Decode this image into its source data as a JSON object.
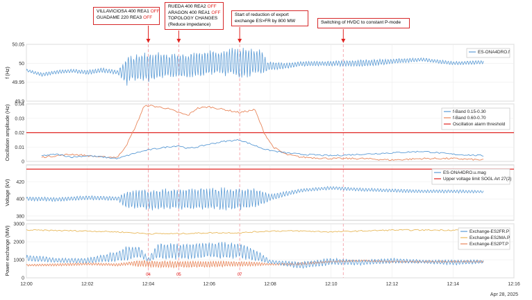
{
  "annotations": [
    {
      "lines": [
        [
          "VILLAVICIOSA  400  REA1 ",
          "OFF"
        ],
        [
          "GUADAME  220  REA3  ",
          "OFF"
        ]
      ]
    },
    {
      "lines": [
        [
          "RUEDA  400  REA2  ",
          "OFF"
        ],
        [
          "ARAGON  400  REA1  ",
          "OFF"
        ],
        [
          "TOPOLOGY  CHANGES",
          ""
        ],
        [
          "(Reduce impedance)",
          ""
        ]
      ]
    },
    {
      "lines": [
        [
          "Start  of  reduction  of  export",
          ""
        ],
        [
          "exchange ES>FR  by  800  MW",
          ""
        ]
      ]
    },
    {
      "lines": [
        [
          "Switching  of  HVDC  to  constant  P-mode",
          ""
        ]
      ]
    }
  ],
  "event_labels": [
    "04",
    "05",
    "07"
  ],
  "date_label": "Apr 28, 2025",
  "colors": {
    "blue": "#5b9bd5",
    "orange": "#e8865a",
    "yellow": "#e8b85a",
    "red": "#e0221f",
    "marker": "#f4a0a8"
  },
  "chart_data": [
    {
      "type": "line",
      "ylabel": "f (Hz)",
      "ylim": [
        49.9,
        50.05
      ],
      "yticks": [
        "49.9",
        "49.95",
        "50",
        "50.05"
      ],
      "series": [
        {
          "name": "ES-ONA4DRO.f"
        }
      ],
      "envelope": [
        [
          0,
          49.978,
          49.985
        ],
        [
          0.5,
          49.965,
          49.975
        ],
        [
          1,
          49.972,
          49.982
        ],
        [
          1.5,
          49.975,
          49.985
        ],
        [
          2,
          49.97,
          49.982
        ],
        [
          2.5,
          49.975,
          49.988
        ],
        [
          3,
          49.97,
          49.982
        ],
        [
          3.3,
          49.94,
          50.02
        ],
        [
          3.6,
          49.955,
          50.025
        ],
        [
          4,
          49.95,
          50.03
        ],
        [
          4.5,
          49.955,
          50.03
        ],
        [
          5,
          49.958,
          50.025
        ],
        [
          5.5,
          49.962,
          50.03
        ],
        [
          6,
          49.965,
          50.035
        ],
        [
          6.5,
          49.965,
          50.04
        ],
        [
          7,
          49.96,
          50.045
        ],
        [
          7.5,
          49.965,
          50.04
        ],
        [
          7.75,
          49.965,
          50.035
        ],
        [
          7.9,
          49.98,
          50.005
        ],
        [
          8.5,
          49.985,
          50.002
        ],
        [
          9,
          49.992,
          50.005
        ],
        [
          10,
          49.993,
          50.006
        ],
        [
          11,
          49.99,
          50.01
        ],
        [
          12,
          49.998,
          50.012
        ],
        [
          13,
          50.005,
          50.015
        ],
        [
          14,
          49.995,
          50.005
        ],
        [
          15,
          49.998,
          50.008
        ]
      ],
      "event_times": [
        4,
        5,
        7,
        10.4
      ],
      "xlim": [
        0,
        16
      ]
    },
    {
      "type": "line",
      "ylabel": "Oscillation amplitude (Hz)",
      "ylim": [
        0,
        0.04
      ],
      "yticks": [
        "0",
        "0.01",
        "0.02",
        "0.03",
        "0.04"
      ],
      "threshold": 0.02,
      "series": [
        {
          "name": "f-Band 0.15-0.30",
          "points": [
            [
              0.5,
              0.004
            ],
            [
              1,
              0.005
            ],
            [
              1.5,
              0.003
            ],
            [
              2,
              0.004
            ],
            [
              2.5,
              0.003
            ],
            [
              3,
              0.002
            ],
            [
              3.3,
              0.004
            ],
            [
              3.6,
              0.006
            ],
            [
              4,
              0.008
            ],
            [
              4.3,
              0.009
            ],
            [
              4.6,
              0.01
            ],
            [
              5,
              0.011
            ],
            [
              5.3,
              0.009
            ],
            [
              5.6,
              0.01
            ],
            [
              6,
              0.012
            ],
            [
              6.5,
              0.014
            ],
            [
              7,
              0.015
            ],
            [
              7.5,
              0.011
            ],
            [
              7.9,
              0.008
            ],
            [
              8.5,
              0.006
            ],
            [
              9,
              0.005
            ],
            [
              10,
              0.004
            ],
            [
              11,
              0.005
            ],
            [
              12,
              0.006
            ],
            [
              13,
              0.007
            ],
            [
              14,
              0.005
            ],
            [
              15,
              0.004
            ]
          ]
        },
        {
          "name": "f-Band 0.60-0.70",
          "points": [
            [
              0.5,
              0.003
            ],
            [
              1,
              0.004
            ],
            [
              1.5,
              0.005
            ],
            [
              2,
              0.004
            ],
            [
              2.5,
              0.003
            ],
            [
              3,
              0.003
            ],
            [
              3.3,
              0.012
            ],
            [
              3.6,
              0.025
            ],
            [
              3.85,
              0.038
            ],
            [
              4,
              0.039
            ],
            [
              4.3,
              0.038
            ],
            [
              4.6,
              0.037
            ],
            [
              5,
              0.034
            ],
            [
              5.3,
              0.032
            ],
            [
              5.6,
              0.037
            ],
            [
              6,
              0.038
            ],
            [
              6.5,
              0.036
            ],
            [
              7,
              0.034
            ],
            [
              7.5,
              0.036
            ],
            [
              7.8,
              0.02
            ],
            [
              8.1,
              0.01
            ],
            [
              8.5,
              0.005
            ],
            [
              9,
              0.003
            ],
            [
              10,
              0.002
            ],
            [
              11,
              0.002
            ],
            [
              12,
              0.001
            ],
            [
              13,
              0.002
            ],
            [
              14,
              0.002
            ],
            [
              15,
              0.001
            ]
          ]
        },
        {
          "name": "Oscillation alarm threshold"
        }
      ],
      "xlim": [
        0,
        16
      ]
    },
    {
      "type": "line",
      "ylabel": "Voltage (kV)",
      "ylim": [
        375,
        440
      ],
      "yticks": [
        "380",
        "400",
        "420"
      ],
      "limit": 435,
      "series": [
        {
          "name": "ES-ONA4DRO.u.mag"
        },
        {
          "name": "Upper voltage limit SOGL Art 27(2)"
        }
      ],
      "envelope": [
        [
          0,
          398,
          403
        ],
        [
          1,
          397,
          402
        ],
        [
          2,
          399,
          404
        ],
        [
          3,
          398,
          403
        ],
        [
          3.3,
          388,
          410
        ],
        [
          4,
          386,
          412
        ],
        [
          5,
          387,
          413
        ],
        [
          6,
          386,
          414
        ],
        [
          7,
          386,
          415
        ],
        [
          7.6,
          390,
          412
        ],
        [
          8,
          398,
          406
        ],
        [
          9,
          408,
          412
        ],
        [
          10,
          411,
          415
        ],
        [
          11,
          409,
          413
        ],
        [
          12,
          408,
          412
        ],
        [
          13,
          407,
          411
        ],
        [
          14,
          407,
          411
        ],
        [
          15,
          407,
          410
        ]
      ],
      "xlim": [
        0,
        16
      ]
    },
    {
      "type": "line",
      "ylabel": "Power exchange (MW)",
      "ylim": [
        0,
        3000
      ],
      "yticks": [
        "0",
        "1000",
        "2000",
        "3000"
      ],
      "xticks": [
        "12:00",
        "12:02",
        "12:04",
        "12:06",
        "12:08",
        "12:10",
        "12:12",
        "12:14",
        "12:16"
      ],
      "series": [
        {
          "name": "Exchange-ES2FR.P"
        },
        {
          "name": "Exchange-ES2MA.P"
        },
        {
          "name": "Exchange-ES2PT.P"
        }
      ],
      "fr_envelope": [
        [
          0,
          900,
          1300
        ],
        [
          1,
          850,
          1100
        ],
        [
          2,
          800,
          1100
        ],
        [
          3,
          900,
          1500
        ],
        [
          3.3,
          900,
          1800
        ],
        [
          3.7,
          1100,
          1800
        ],
        [
          4,
          900,
          1100
        ],
        [
          4.3,
          1000,
          2000
        ],
        [
          5,
          1000,
          1900
        ],
        [
          6,
          1050,
          2000
        ],
        [
          7,
          1050,
          2000
        ],
        [
          7.6,
          900,
          1500
        ],
        [
          8,
          800,
          1000
        ],
        [
          9,
          500,
          900
        ],
        [
          10,
          700,
          1100
        ],
        [
          11,
          700,
          1000
        ],
        [
          12,
          800,
          1100
        ],
        [
          13,
          800,
          1000
        ],
        [
          14,
          700,
          1000
        ],
        [
          15,
          800,
          1000
        ]
      ],
      "pt_envelope": [
        [
          0,
          650,
          750
        ],
        [
          1,
          650,
          800
        ],
        [
          2,
          700,
          850
        ],
        [
          3,
          650,
          800
        ],
        [
          3.4,
          700,
          900
        ],
        [
          3.7,
          600,
          1000
        ],
        [
          4.5,
          550,
          950
        ],
        [
          5.5,
          550,
          950
        ],
        [
          6.5,
          600,
          950
        ],
        [
          7.5,
          650,
          900
        ],
        [
          8,
          700,
          800
        ],
        [
          9,
          700,
          850
        ],
        [
          10,
          850,
          950
        ],
        [
          11,
          900,
          1000
        ],
        [
          12,
          850,
          950
        ],
        [
          13,
          850,
          950
        ],
        [
          14,
          850,
          950
        ],
        [
          15,
          850,
          950
        ]
      ],
      "ma_points": [
        [
          0,
          2650
        ],
        [
          2,
          2600
        ],
        [
          3,
          2550
        ],
        [
          4,
          2450
        ],
        [
          5,
          2450
        ],
        [
          6,
          2500
        ],
        [
          7,
          2500
        ],
        [
          8,
          2600
        ],
        [
          9,
          2600
        ],
        [
          10,
          2550
        ],
        [
          11,
          2600
        ],
        [
          12,
          2650
        ],
        [
          13,
          2650
        ],
        [
          14,
          2650
        ],
        [
          15,
          2650
        ]
      ],
      "event_times": [
        4,
        5,
        7,
        10.4
      ],
      "xlim": [
        0,
        16
      ]
    }
  ]
}
